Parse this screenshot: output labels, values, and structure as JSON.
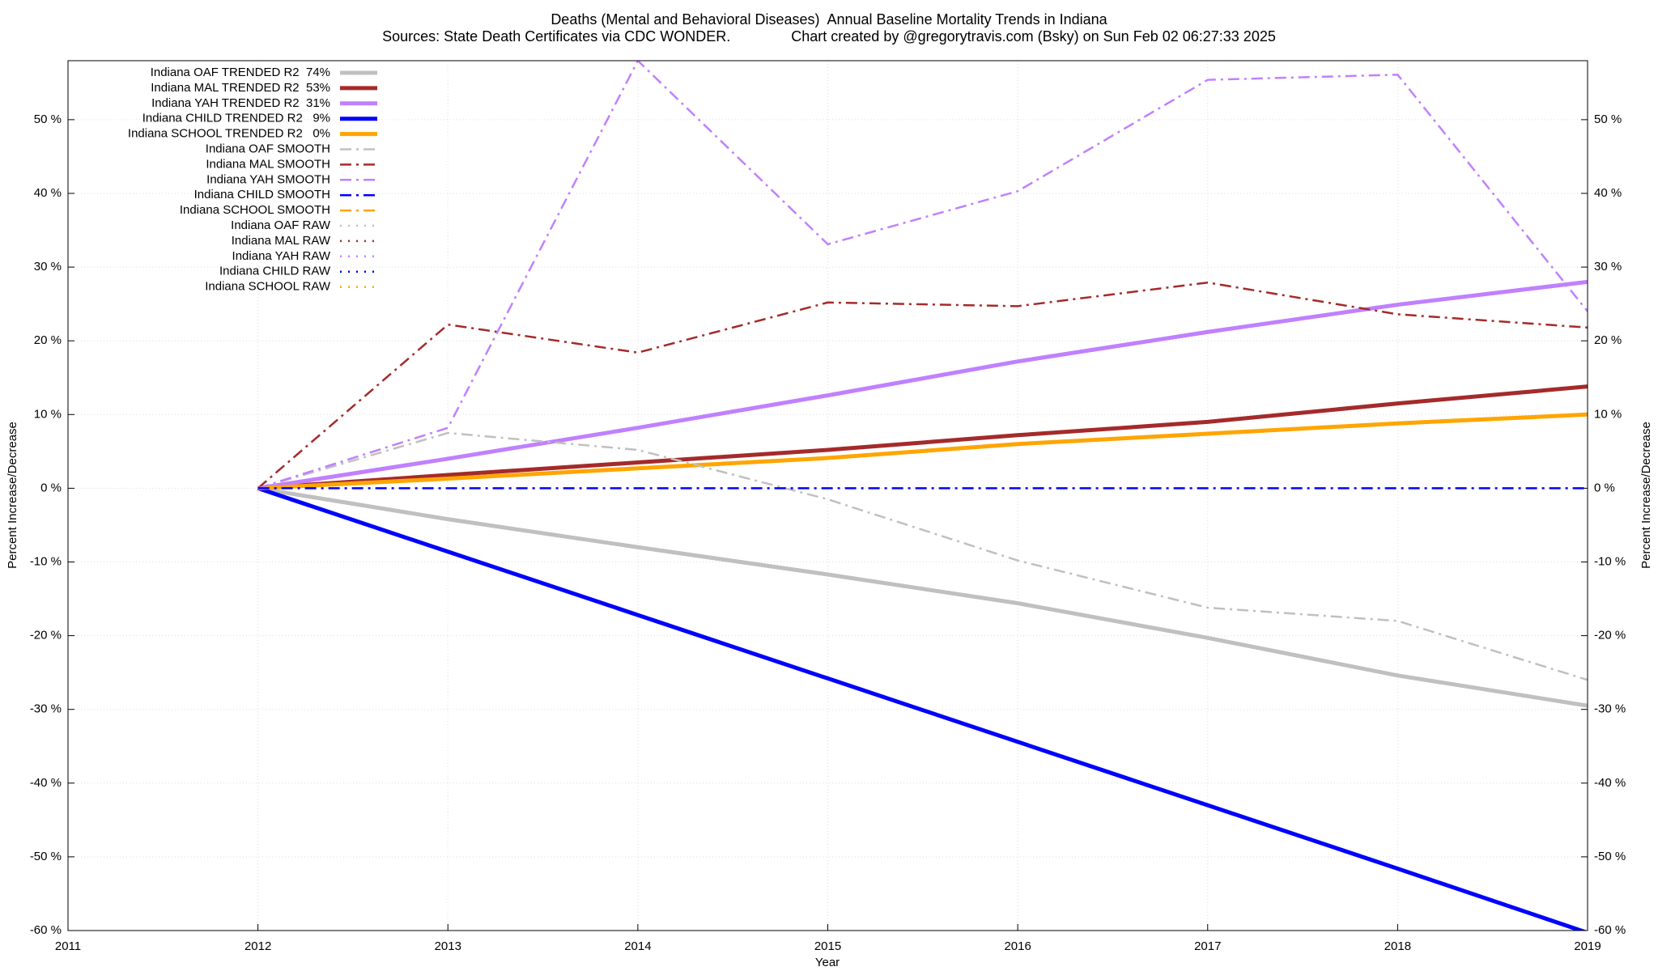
{
  "chart_data": {
    "type": "line",
    "title": "Deaths (Mental and Behavioral Diseases)  Annual Baseline Mortality Trends in Indiana",
    "subtitle": "Sources: State Death Certificates via CDC WONDER.               Chart created by @gregorytravis.com (Bsky) on Sun Feb 02 06:27:33 2025",
    "xlabel": "Year",
    "ylabel": "Percent Increase/Decrease",
    "y2label": "Percent Increase/Decrease",
    "x": [
      2012,
      2013,
      2014,
      2015,
      2016,
      2017,
      2018,
      2019
    ],
    "xlim": [
      2011,
      2019
    ],
    "xticks": [
      2011,
      2012,
      2013,
      2014,
      2015,
      2016,
      2017,
      2018,
      2019
    ],
    "ylim": [
      -60,
      58
    ],
    "yticks": [
      {
        "value": -60,
        "label": "-60 %"
      },
      {
        "value": -50,
        "label": "-50 %"
      },
      {
        "value": -40,
        "label": "-40 %"
      },
      {
        "value": -30,
        "label": "-30 %"
      },
      {
        "value": -20,
        "label": "-20 %"
      },
      {
        "value": -10,
        "label": "-10 %"
      },
      {
        "value": 0,
        "label": "0 %"
      },
      {
        "value": 10,
        "label": "10 %"
      },
      {
        "value": 20,
        "label": "20 %"
      },
      {
        "value": 30,
        "label": "30 %"
      },
      {
        "value": 40,
        "label": "40 %"
      },
      {
        "value": 50,
        "label": "50 %"
      }
    ],
    "grid": true,
    "legend": "top-left",
    "series": [
      {
        "name": "Indiana OAF TRENDED R2  74%",
        "color": "#c0c0c0",
        "style": "solid",
        "values": [
          0,
          -4.2,
          -8.0,
          -11.7,
          -15.6,
          -20.3,
          -25.4,
          -29.5
        ]
      },
      {
        "name": "Indiana MAL TRENDED R2  53%",
        "color": "#a52a2a",
        "style": "solid",
        "values": [
          0,
          1.8,
          3.5,
          5.2,
          7.2,
          9.0,
          11.5,
          13.8
        ]
      },
      {
        "name": "Indiana YAH TRENDED R2  31%",
        "color": "#c080ff",
        "style": "solid",
        "values": [
          0,
          4.0,
          8.2,
          12.6,
          17.2,
          21.2,
          24.9,
          28.0
        ]
      },
      {
        "name": "Indiana CHILD TRENDED R2   9%",
        "color": "#0000ff",
        "style": "solid",
        "values": [
          0,
          -8.6,
          -17.2,
          -25.8,
          -34.4,
          -43.0,
          -51.6,
          -60.3
        ]
      },
      {
        "name": "Indiana SCHOOL TRENDED R2   0%",
        "color": "#ffa500",
        "style": "solid",
        "values": [
          0,
          1.3,
          2.7,
          4.1,
          6.0,
          7.4,
          8.8,
          10.0
        ]
      },
      {
        "name": "Indiana OAF SMOOTH",
        "color": "#c0c0c0",
        "style": "dashdot",
        "values": [
          0,
          7.5,
          5.2,
          -1.5,
          -9.8,
          -16.2,
          -18.0,
          -26.0
        ]
      },
      {
        "name": "Indiana MAL SMOOTH",
        "color": "#a52a2a",
        "style": "dashdot",
        "values": [
          0,
          22.2,
          18.4,
          25.2,
          24.7,
          27.9,
          23.6,
          21.8
        ]
      },
      {
        "name": "Indiana YAH SMOOTH",
        "color": "#c080ff",
        "style": "dashdot",
        "values": [
          0,
          8.2,
          58,
          33.1,
          40.3,
          55.4,
          56.1,
          24.0
        ]
      },
      {
        "name": "Indiana CHILD SMOOTH",
        "color": "#0000ff",
        "style": "dashdot",
        "values": [
          0,
          0,
          0,
          0,
          0,
          0,
          0,
          0
        ]
      },
      {
        "name": "Indiana SCHOOL SMOOTH",
        "color": "#ffa500",
        "style": "dashdot",
        "values": [
          null,
          null,
          null,
          null,
          null,
          null,
          null,
          null
        ]
      },
      {
        "name": "Indiana OAF RAW",
        "color": "#c0c0c0",
        "style": "dot",
        "values": [
          null,
          null,
          null,
          null,
          null,
          null,
          null,
          null
        ]
      },
      {
        "name": "Indiana MAL RAW",
        "color": "#a52a2a",
        "style": "dot",
        "values": [
          null,
          null,
          null,
          null,
          null,
          null,
          null,
          null
        ]
      },
      {
        "name": "Indiana YAH RAW",
        "color": "#c080ff",
        "style": "dot",
        "values": [
          null,
          null,
          null,
          null,
          null,
          null,
          null,
          null
        ]
      },
      {
        "name": "Indiana CHILD RAW",
        "color": "#0000ff",
        "style": "dot",
        "values": [
          null,
          null,
          null,
          null,
          null,
          null,
          null,
          null
        ]
      },
      {
        "name": "Indiana SCHOOL RAW",
        "color": "#ffa500",
        "style": "dot",
        "values": [
          null,
          null,
          null,
          null,
          null,
          null,
          null,
          null
        ]
      }
    ]
  }
}
